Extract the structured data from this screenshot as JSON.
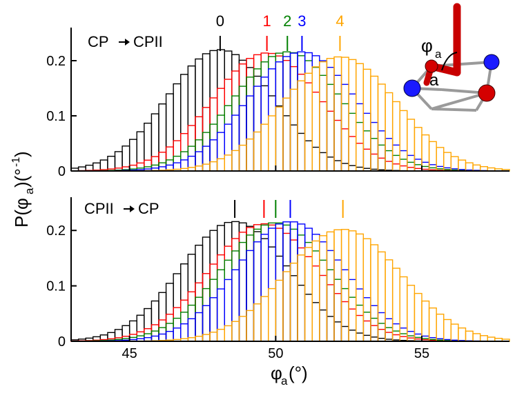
{
  "chart_data": [
    {
      "type": "histogram",
      "panel": "top",
      "title_from": "CP",
      "title_to": "CPII",
      "xlim": [
        43,
        58
      ],
      "ylim": [
        0,
        0.26
      ],
      "x_ticks": [
        45,
        50,
        55
      ],
      "x_tick_labels": [],
      "y_ticks": [
        0,
        0.1,
        0.2
      ],
      "y_tick_labels": [
        "0",
        "0.1",
        "0.2"
      ],
      "bin_width": 0.25,
      "series": [
        {
          "name": "0",
          "color": "#000000",
          "mean": 48.1,
          "peak": 0.22
        },
        {
          "name": "1",
          "color": "#ff0000",
          "mean": 49.7,
          "peak": 0.214
        },
        {
          "name": "2",
          "color": "#008000",
          "mean": 50.4,
          "peak": 0.216
        },
        {
          "name": "3",
          "color": "#0000ff",
          "mean": 50.9,
          "peak": 0.216
        },
        {
          "name": "4",
          "color": "#ffa500",
          "mean": 52.2,
          "peak": 0.207
        }
      ],
      "mean_markers": [
        {
          "label": "0",
          "x": 48.1,
          "color": "#000000"
        },
        {
          "label": "1",
          "x": 49.7,
          "color": "#ff0000"
        },
        {
          "label": "2",
          "x": 50.4,
          "color": "#008000"
        },
        {
          "label": "3",
          "x": 50.9,
          "color": "#0000ff"
        },
        {
          "label": "4",
          "x": 52.2,
          "color": "#ffa500"
        }
      ]
    },
    {
      "type": "histogram",
      "panel": "bottom",
      "title_from": "CPII",
      "title_to": "CP",
      "xlim": [
        43,
        58
      ],
      "ylim": [
        0,
        0.26
      ],
      "x_ticks": [
        45,
        50,
        55
      ],
      "x_tick_labels": [
        "45",
        "50",
        "55"
      ],
      "y_ticks": [
        0,
        0.1,
        0.2
      ],
      "y_tick_labels": [
        "0",
        "0.1",
        "0.2"
      ],
      "bin_width": 0.25,
      "series": [
        {
          "name": "0",
          "color": "#000000",
          "mean": 48.6,
          "peak": 0.216
        },
        {
          "name": "1",
          "color": "#ff0000",
          "mean": 49.6,
          "peak": 0.212
        },
        {
          "name": "2",
          "color": "#008000",
          "mean": 50.0,
          "peak": 0.214
        },
        {
          "name": "3",
          "color": "#0000ff",
          "mean": 50.5,
          "peak": 0.216
        },
        {
          "name": "4",
          "color": "#ffa500",
          "mean": 52.3,
          "peak": 0.202
        }
      ],
      "mean_markers": [
        {
          "label": "",
          "x": 48.6,
          "color": "#000000"
        },
        {
          "label": "",
          "x": 49.6,
          "color": "#ff0000"
        },
        {
          "label": "",
          "x": 50.0,
          "color": "#008000"
        },
        {
          "label": "",
          "x": 50.5,
          "color": "#0000ff"
        },
        {
          "label": "",
          "x": 52.3,
          "color": "#ffa500"
        }
      ]
    }
  ],
  "axes": {
    "xlabel": {
      "base": "φ",
      "sub": "a",
      "unit": "(°)"
    },
    "ylabel": {
      "base": "P(φ",
      "sub": "a",
      "mid": ")(°",
      "sup": "-1",
      "end": ")"
    }
  },
  "inset": {
    "angle_label": "φ",
    "angle_sub": "a",
    "edge_label": "a",
    "colors": {
      "red": "#d40000",
      "blue": "#1a1aff",
      "frame": "#9a9a9a"
    }
  }
}
